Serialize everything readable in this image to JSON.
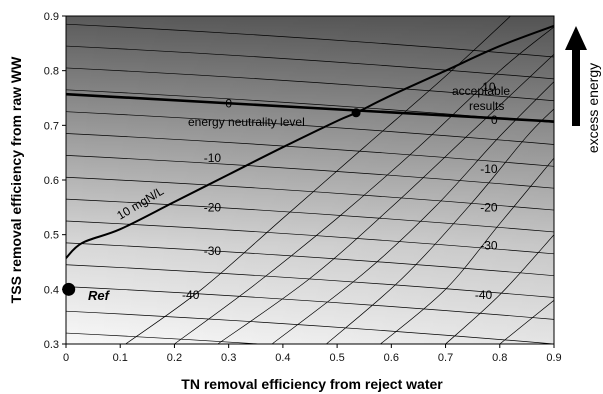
{
  "chart_data": {
    "type": "contour",
    "xlabel": "TN removal efficiency from reject water",
    "ylabel": "TSS removal efficiency from raw WW",
    "xlim": [
      0,
      0.9
    ],
    "ylim": [
      0.3,
      0.9
    ],
    "x_ticks": [
      "0",
      "0.1",
      "0.2",
      "0.3",
      "0.4",
      "0.5",
      "0.6",
      "0.7",
      "0.8",
      "0.9"
    ],
    "y_ticks": [
      "0.3",
      "0.4",
      "0.5",
      "0.6",
      "0.7",
      "0.8",
      "0.9"
    ],
    "shading": "grayscale, darker toward higher TSS removal (top)",
    "energy_contours_left_end_y": [
      0.32,
      0.36,
      0.405,
      0.445,
      0.485,
      0.525,
      0.565,
      0.605,
      0.645,
      0.685,
      0.725,
      0.765,
      0.805,
      0.845,
      0.885
    ],
    "energy_contour_slope": -0.06,
    "energy_labels": [
      {
        "text": "-40",
        "x": 0.23,
        "y": 0.39
      },
      {
        "text": "-30",
        "x": 0.27,
        "y": 0.47
      },
      {
        "text": "-20",
        "x": 0.27,
        "y": 0.55
      },
      {
        "text": "-10",
        "x": 0.27,
        "y": 0.64
      },
      {
        "text": "0",
        "x": 0.3,
        "y": 0.74
      },
      {
        "text": "10",
        "x": 0.78,
        "y": 0.77
      },
      {
        "text": "0",
        "x": 0.79,
        "y": 0.71
      },
      {
        "text": "-10",
        "x": 0.78,
        "y": 0.62
      },
      {
        "text": "-20",
        "x": 0.78,
        "y": 0.55
      },
      {
        "text": "-30",
        "x": 0.78,
        "y": 0.48
      },
      {
        "text": "-40",
        "x": 0.77,
        "y": 0.39
      }
    ],
    "neutrality_line": {
      "label": "energy neutrality level",
      "points": [
        [
          0,
          0.757
        ],
        [
          0.9,
          0.707
        ]
      ]
    },
    "effluent_lines": [
      {
        "points": [
          [
            0.11,
            0.3
          ],
          [
            0.25,
            0.4
          ],
          [
            0.4,
            0.53
          ],
          [
            0.55,
            0.66
          ],
          [
            0.7,
            0.79
          ],
          [
            0.82,
            0.9
          ]
        ]
      },
      {
        "points": [
          [
            0.2,
            0.3
          ],
          [
            0.35,
            0.41
          ],
          [
            0.5,
            0.53
          ],
          [
            0.65,
            0.66
          ],
          [
            0.8,
            0.8
          ],
          [
            0.9,
            0.88
          ]
        ]
      },
      {
        "points": [
          [
            0.28,
            0.3
          ],
          [
            0.45,
            0.42
          ],
          [
            0.6,
            0.55
          ],
          [
            0.75,
            0.69
          ],
          [
            0.9,
            0.83
          ]
        ]
      },
      {
        "points": [
          [
            0.38,
            0.3
          ],
          [
            0.55,
            0.43
          ],
          [
            0.68,
            0.55
          ],
          [
            0.8,
            0.68
          ],
          [
            0.9,
            0.78
          ]
        ]
      },
      {
        "points": [
          [
            0.48,
            0.3
          ],
          [
            0.62,
            0.42
          ],
          [
            0.75,
            0.56
          ],
          [
            0.85,
            0.68
          ],
          [
            0.9,
            0.73
          ]
        ]
      },
      {
        "points": [
          [
            0.58,
            0.3
          ],
          [
            0.7,
            0.4
          ],
          [
            0.8,
            0.52
          ],
          [
            0.9,
            0.64
          ]
        ]
      },
      {
        "points": [
          [
            0.7,
            0.3
          ],
          [
            0.8,
            0.39
          ],
          [
            0.9,
            0.5
          ]
        ]
      },
      {
        "points": [
          [
            0.8,
            0.3
          ],
          [
            0.9,
            0.38
          ]
        ]
      }
    ],
    "limit_curve": {
      "label": "10 mgN/L",
      "points": [
        [
          0,
          0.457
        ],
        [
          0.03,
          0.485
        ],
        [
          0.1,
          0.51
        ],
        [
          0.2,
          0.56
        ],
        [
          0.3,
          0.61
        ],
        [
          0.4,
          0.66
        ],
        [
          0.5,
          0.708
        ],
        [
          0.535,
          0.723
        ],
        [
          0.6,
          0.755
        ],
        [
          0.7,
          0.8
        ],
        [
          0.8,
          0.845
        ],
        [
          0.9,
          0.882
        ]
      ]
    },
    "intersection_point": {
      "x": 0.535,
      "y": 0.723
    },
    "reference_point": {
      "label": "Ref",
      "x": 0.005,
      "y": 0.4
    },
    "acceptable_label": [
      "acceptable",
      "results"
    ],
    "side_label": "excess energy"
  }
}
